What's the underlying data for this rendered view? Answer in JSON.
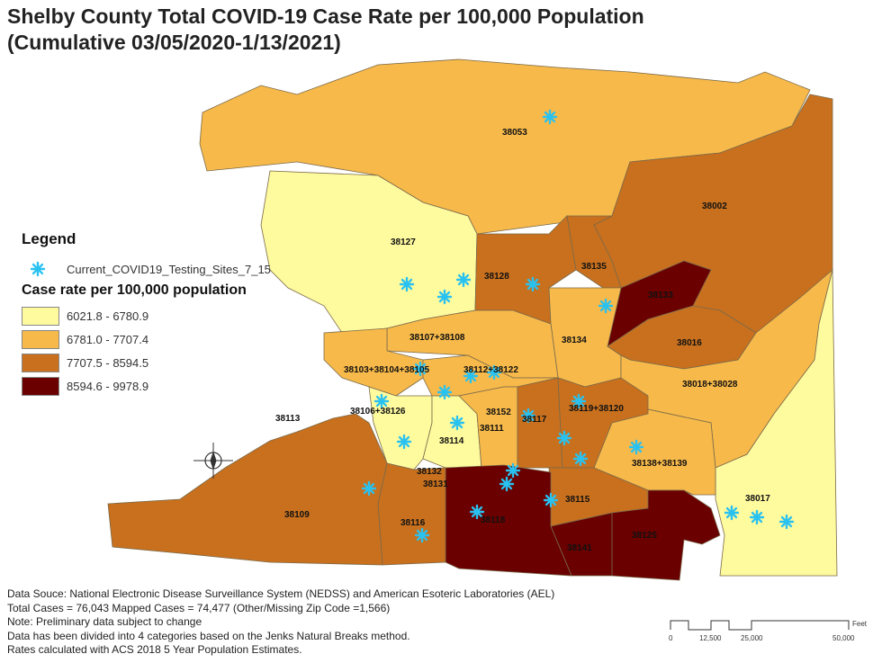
{
  "title_line1": "Shelby County Total COVID-19 Case Rate per 100,000 Population",
  "title_line2": "(Cumulative 03/05/2020-1/13/2021)",
  "legend": {
    "title": "Legend",
    "sites_label": "Current_COVID19_Testing_Sites_7_15",
    "site_color": "#29c2f0",
    "rate_title": "Case rate per 100,000 population",
    "classes": [
      {
        "range": "6021.8 - 6780.9",
        "color": "#fefa9e"
      },
      {
        "range": "6781.0 - 7707.4",
        "color": "#f7b94a"
      },
      {
        "range": "7707.5 - 8594.5",
        "color": "#c8701e"
      },
      {
        "range": "8594.6 - 9978.9",
        "color": "#6a0000"
      }
    ]
  },
  "zips": [
    {
      "label": "38053",
      "class": 1
    },
    {
      "label": "38002",
      "class": 2
    },
    {
      "label": "38127",
      "class": 0
    },
    {
      "label": "38128",
      "class": 2
    },
    {
      "label": "38135",
      "class": 2
    },
    {
      "label": "38133",
      "class": 3
    },
    {
      "label": "38134",
      "class": 1
    },
    {
      "label": "38016",
      "class": 2
    },
    {
      "label": "38018+38028",
      "class": 1
    },
    {
      "label": "38017",
      "class": 0
    },
    {
      "label": "38107+38108",
      "class": 1
    },
    {
      "label": "38103+38104+38105",
      "class": 1
    },
    {
      "label": "38112+38122",
      "class": 1
    },
    {
      "label": "38106+38126",
      "class": 0
    },
    {
      "label": "38114",
      "class": 0
    },
    {
      "label": "38111",
      "class": 1
    },
    {
      "label": "38117",
      "class": 2
    },
    {
      "label": "38119+38120",
      "class": 2
    },
    {
      "label": "38138+38139",
      "class": 1
    },
    {
      "label": "38115",
      "class": 2
    },
    {
      "label": "38125",
      "class": 3
    },
    {
      "label": "38141",
      "class": 3
    },
    {
      "label": "38118",
      "class": 3
    },
    {
      "label": "38116",
      "class": 2
    },
    {
      "label": "38109",
      "class": 2
    },
    {
      "label": "38113",
      "class": null
    },
    {
      "label": "38152",
      "class": 1
    },
    {
      "label": "38132",
      "class": null
    },
    {
      "label": "38131",
      "class": null
    }
  ],
  "footer": [
    "Data Souce: National Electronic Disease Surveillance System (NEDSS) and American Esoteric Laboratories (AEL)",
    "Total Cases = 76,043 Mapped Cases = 74,477 (Other/Missing Zip Code =1,566)",
    "Note: Preliminary data subject to change",
    "Data has been divided into 4 categories based on the Jenks Natural Breaks method.",
    "Rates calculated with ACS 2018 5 Year Population Estimates."
  ],
  "scale_bar": {
    "unit": "Feet",
    "ticks": [
      "0",
      "12,500",
      "25,000",
      "50,000"
    ]
  }
}
